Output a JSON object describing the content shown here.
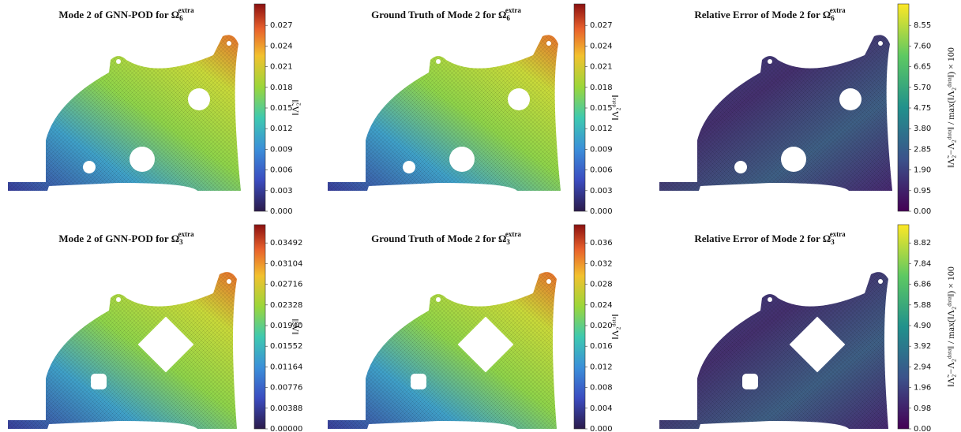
{
  "panels": [
    {
      "title": {
        "text": "Mode 2 of GNN-POD for Ω",
        "sub": "6",
        "sup": "extra"
      },
      "colormap": "jet",
      "colorbar_label": "‖Λ̃₂‖",
      "ticks": [
        "0.000",
        "0.003",
        "0.006",
        "0.009",
        "0.012",
        "0.015",
        "0.018",
        "0.021",
        "0.024",
        "0.027"
      ]
    },
    {
      "title": {
        "text": "Ground Truth of Mode 2 for Ω",
        "sub": "6",
        "sup": "extra"
      },
      "colormap": "jet",
      "colorbar_label": "‖Λ₂ᵈᵃᵗᵃ‖",
      "ticks": [
        "0.000",
        "0.003",
        "0.006",
        "0.009",
        "0.012",
        "0.015",
        "0.018",
        "0.021",
        "0.024",
        "0.027"
      ]
    },
    {
      "title": {
        "text": "Relative Error of Mode 2 for Ω",
        "sub": "6",
        "sup": "extra"
      },
      "colormap": "viridis",
      "colorbar_label": "‖Λ̃₂−Λ₂ᵈᵃᵗᵃ‖ / max(‖Λ₂ᵈᵃᵗᵃ‖) × 100",
      "ticks": [
        "0.00",
        "0.95",
        "1.90",
        "2.85",
        "3.80",
        "4.75",
        "5.70",
        "6.65",
        "7.60",
        "8.55"
      ]
    },
    {
      "title": {
        "text": "Mode 2 of GNN-POD for Ω",
        "sub": "3",
        "sup": "extra"
      },
      "colormap": "jet",
      "colorbar_label": "‖Λ̃₂‖",
      "ticks": [
        "0.00000",
        "0.00388",
        "0.00776",
        "0.01164",
        "0.01552",
        "0.01940",
        "0.02328",
        "0.02716",
        "0.03104",
        "0.03492"
      ]
    },
    {
      "title": {
        "text": "Ground Truth of Mode 2 for Ω",
        "sub": "3",
        "sup": "extra"
      },
      "colormap": "jet",
      "colorbar_label": "‖Λ₂ᵈᵃᵗᵃ‖",
      "ticks": [
        "0.000",
        "0.004",
        "0.008",
        "0.012",
        "0.016",
        "0.020",
        "0.024",
        "0.028",
        "0.032",
        "0.036"
      ]
    },
    {
      "title": {
        "text": "Relative Error of Mode 2 for Ω",
        "sub": "3",
        "sup": "extra"
      },
      "colormap": "viridis",
      "colorbar_label": "‖Λ̃₂−Λ₂ᵈᵃᵗᵃ‖ / max(‖Λ₂ᵈᵃᵗᵃ‖) × 100",
      "ticks": [
        "0.00",
        "0.98",
        "1.96",
        "2.94",
        "3.92",
        "4.90",
        "5.88",
        "6.86",
        "7.84",
        "8.82"
      ]
    }
  ]
}
